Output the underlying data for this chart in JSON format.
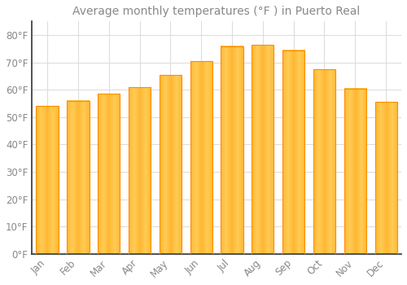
{
  "title": "Average monthly temperatures (°F ) in Puerto Real",
  "months": [
    "Jan",
    "Feb",
    "Mar",
    "Apr",
    "May",
    "Jun",
    "Jul",
    "Aug",
    "Sep",
    "Oct",
    "Nov",
    "Dec"
  ],
  "values": [
    54,
    56,
    58.5,
    61,
    65.5,
    70.5,
    76,
    76.5,
    74.5,
    67.5,
    60.5,
    55.5
  ],
  "bar_color_light": "#FFB733",
  "bar_color_dark": "#FF8C00",
  "background_color": "#FFFFFF",
  "grid_color": "#DDDDDD",
  "text_color": "#888888",
  "axis_color": "#333333",
  "ylim": [
    0,
    85
  ],
  "yticks": [
    0,
    10,
    20,
    30,
    40,
    50,
    60,
    70,
    80
  ],
  "ytick_labels": [
    "0°F",
    "10°F",
    "20°F",
    "30°F",
    "40°F",
    "50°F",
    "60°F",
    "70°F",
    "80°F"
  ],
  "title_fontsize": 10,
  "tick_fontsize": 8.5
}
